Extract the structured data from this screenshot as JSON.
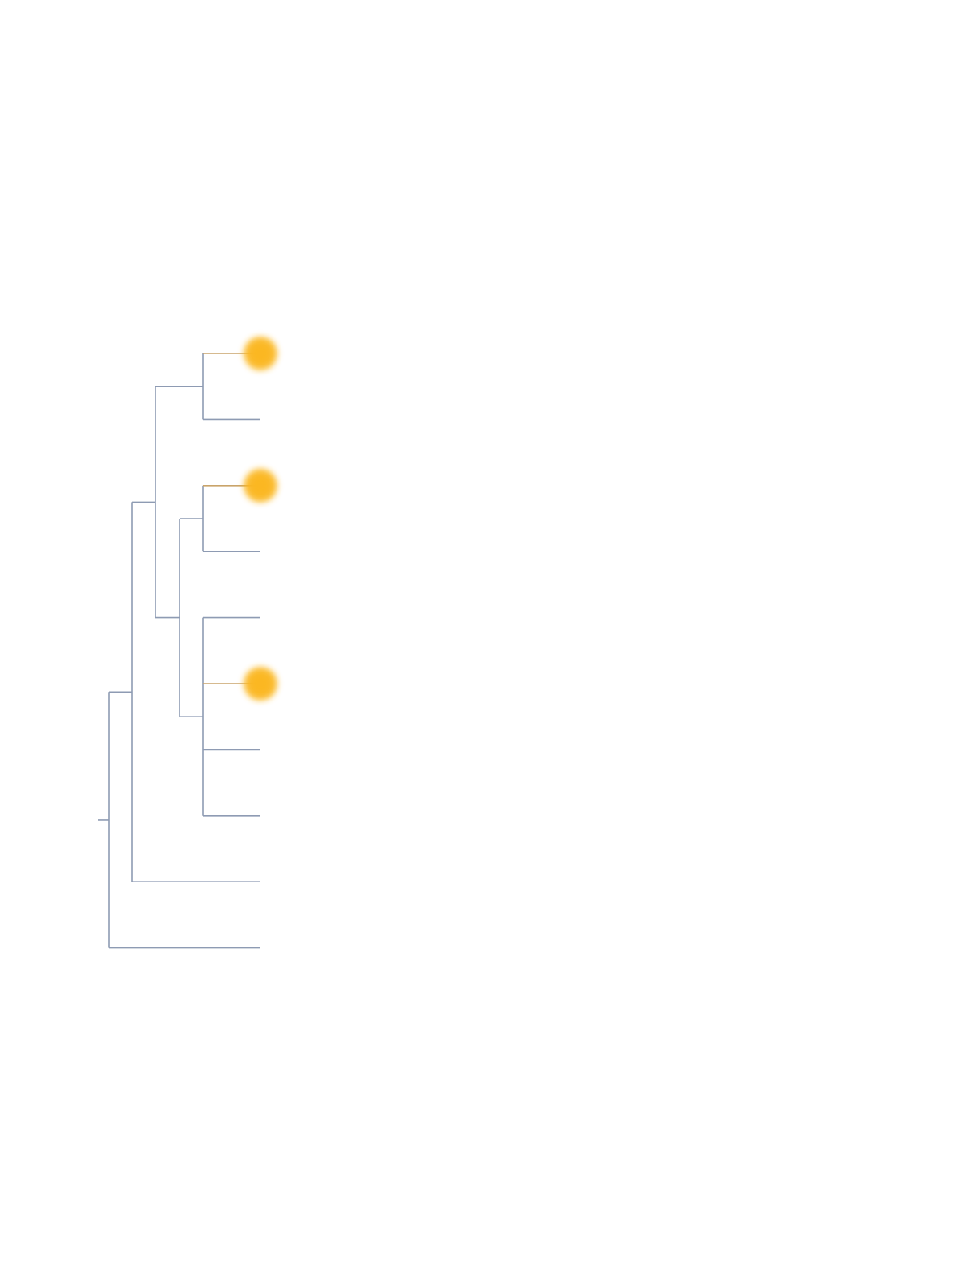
{
  "tree": {
    "type": "dendrogram",
    "orientation": "left-to-right",
    "colors": {
      "branch": "#8e9bb3",
      "highlight_branch": "#c9a46a",
      "highlight_marker": "#fbb722",
      "background": "#ffffff"
    },
    "structure": {
      "id": "root",
      "children": [
        {
          "id": "n1",
          "children": [
            {
              "id": "n2",
              "children": [
                {
                  "id": "n3",
                  "children": [
                    {
                      "id": "leaf-1",
                      "highlighted": true
                    },
                    {
                      "id": "leaf-2",
                      "highlighted": false
                    }
                  ]
                },
                {
                  "id": "n4",
                  "children": [
                    {
                      "id": "n5",
                      "children": [
                        {
                          "id": "leaf-3",
                          "highlighted": true
                        },
                        {
                          "id": "leaf-4",
                          "highlighted": false
                        }
                      ]
                    },
                    {
                      "id": "n6",
                      "children": [
                        {
                          "id": "leaf-5",
                          "highlighted": false
                        },
                        {
                          "id": "leaf-6",
                          "highlighted": true
                        },
                        {
                          "id": "leaf-7",
                          "highlighted": false
                        },
                        {
                          "id": "leaf-8",
                          "highlighted": false
                        }
                      ]
                    }
                  ]
                }
              ]
            },
            {
              "id": "leaf-9",
              "highlighted": false
            }
          ]
        },
        {
          "id": "leaf-10",
          "highlighted": false
        }
      ]
    }
  }
}
